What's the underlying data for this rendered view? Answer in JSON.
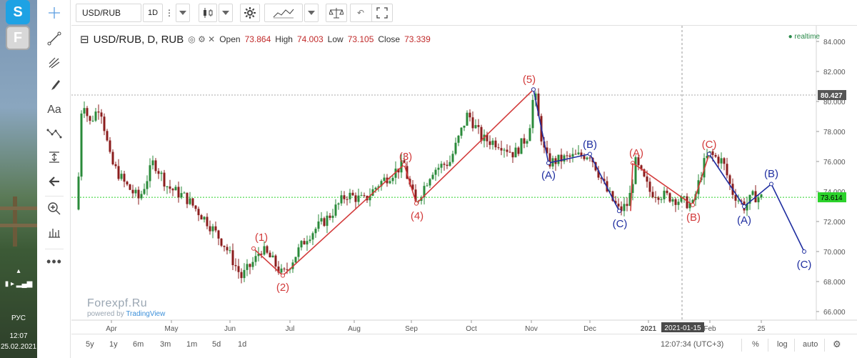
{
  "desktop": {
    "skype_letter": "S",
    "app_letter": "F",
    "lang": "РУС",
    "time": "12:07",
    "date": "25.02.2021"
  },
  "toolbar": {
    "symbol": "USD/RUB",
    "interval": "1D"
  },
  "legend": {
    "title": "USD/RUB, D, RUB",
    "open_label": "Open",
    "open": "73.864",
    "high_label": "High",
    "high": "74.003",
    "low_label": "Low",
    "low": "73.105",
    "close_label": "Close",
    "close": "73.339",
    "realtime": "realtime"
  },
  "watermark": {
    "brand": "Forexpf.Ru",
    "powered": "powered by",
    "tv": "TradingView"
  },
  "chart_data": {
    "type": "candlestick",
    "y_ticks": [
      "84.000",
      "82.000",
      "80.000",
      "78.000",
      "76.000",
      "74.000",
      "72.000",
      "70.000",
      "68.000",
      "66.000"
    ],
    "ylim": [
      65,
      85
    ],
    "x_ticks": [
      "Apr",
      "May",
      "Jun",
      "Jul",
      "Aug",
      "Sep",
      "Oct",
      "Nov",
      "Dec",
      "2021",
      "Feb",
      "25"
    ],
    "price_labels": {
      "high_line": "80.427",
      "last": "73.614",
      "crosshair_date": "2021-01-15"
    },
    "colors": {
      "up": "#2a8a3a",
      "down": "#8b1d1d",
      "wave_red": "#d23a3a",
      "wave_blue": "#1f2ea0",
      "last_line": "#2bd22b"
    },
    "red_waves": [
      {
        "label": "(1)",
        "value": 70.2
      },
      {
        "label": "(2)",
        "value": 68.4
      },
      {
        "label": "(3)",
        "value": 75.8
      },
      {
        "label": "(4)",
        "value": 73.2
      },
      {
        "label": "(5)",
        "value": 80.8
      },
      {
        "label": "(A)",
        "value": 75.9
      },
      {
        "label": "(B)",
        "value": 73.1
      },
      {
        "label": "(C)",
        "value": 76.5
      }
    ],
    "blue_waves": [
      {
        "label": "(A)",
        "value": 75.9
      },
      {
        "label": "(B)",
        "value": 76.5
      },
      {
        "label": "(C)",
        "value": 72.7
      },
      {
        "label": "(A)",
        "value": 73.0
      },
      {
        "label": "(B)",
        "value": 74.5
      },
      {
        "label": "(C)",
        "value": 70.0
      }
    ]
  },
  "ranges": [
    "5y",
    "1y",
    "6m",
    "3m",
    "1m",
    "5d",
    "1d"
  ],
  "status": {
    "time": "12:07:34 (UTC+3)",
    "percent": "%",
    "log": "log",
    "auto": "auto"
  }
}
